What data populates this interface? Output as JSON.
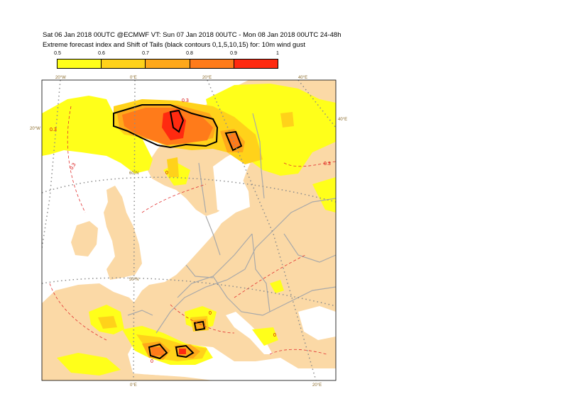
{
  "header": {
    "line1": "Sat 06 Jan 2018 00UTC @ECMWF VT: Sun 07 Jan 2018 00UTC - Mon 08 Jan 2018 00UTC  24-48h",
    "line2": "Extreme forecast index and Shift of Tails (black contours 0,1,5,10,15) for: 10m wind gust"
  },
  "legend": {
    "labels": [
      "0.5",
      "0.6",
      "0.7",
      "0.8",
      "0.9",
      "1"
    ],
    "colors": [
      "#ffff1a",
      "#ffd21a",
      "#ffa81a",
      "#ff7b1a",
      "#ff2a10"
    ]
  },
  "map": {
    "land_color": "#fbd9a6",
    "sea_color": "#ffffff",
    "border_color": "#a9a9a9",
    "graticule_labels": {
      "top": [
        "20°W",
        "0°E",
        "20°E",
        "40°E"
      ],
      "left": [
        "20°W"
      ],
      "right": [
        "40°E"
      ],
      "bottom": [
        "0°E",
        "20°E"
      ],
      "inner": [
        "60°N",
        "50°N"
      ]
    },
    "contour_values": [
      "0.3",
      "0.3",
      "0.3",
      "0.3",
      "0",
      "0",
      "0",
      "0"
    ]
  }
}
